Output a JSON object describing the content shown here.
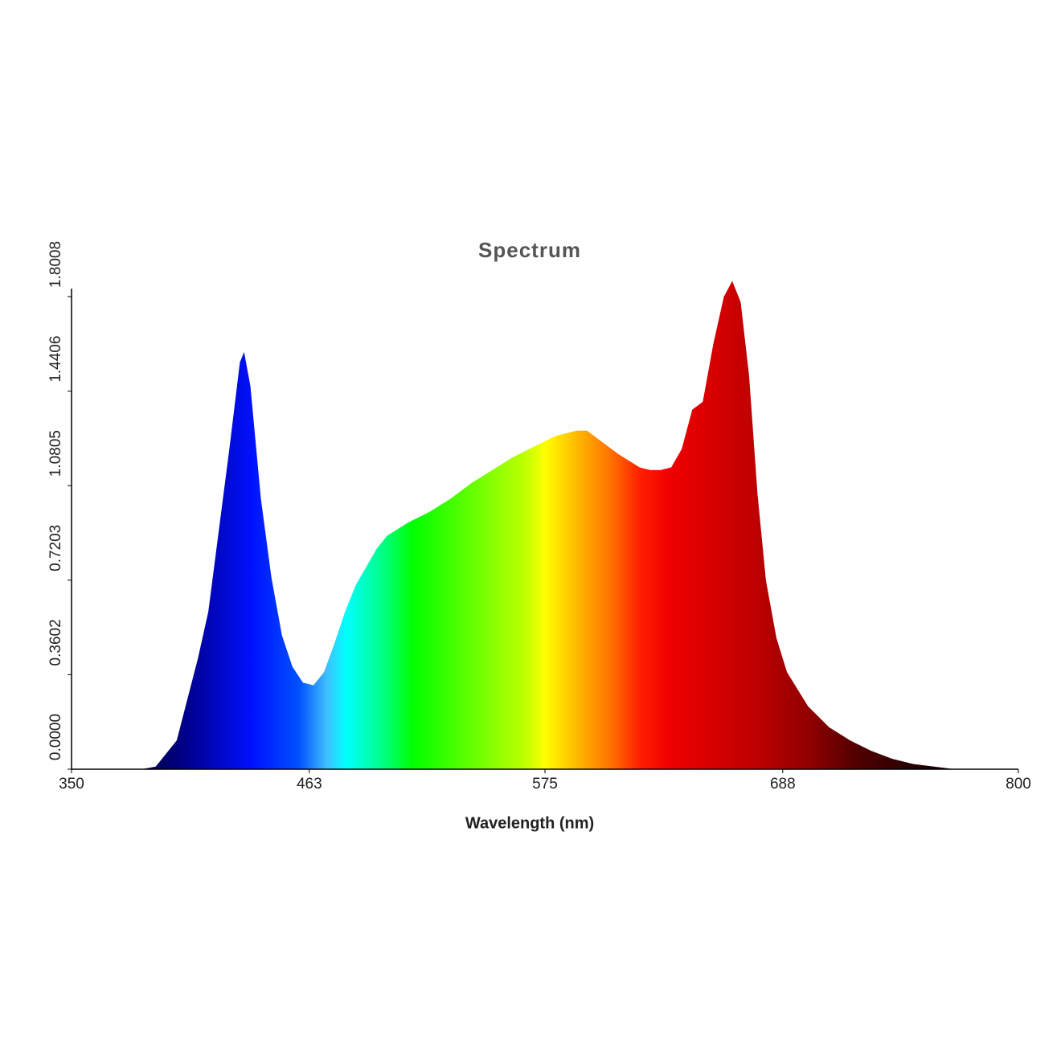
{
  "chart_data": {
    "type": "area",
    "title": "Spectrum",
    "xlabel": "Wavelength (nm)",
    "x": [
      350,
      383,
      390,
      400,
      410,
      415,
      420,
      425,
      430,
      432,
      435,
      440,
      445,
      450,
      455,
      460,
      465,
      470,
      475,
      480,
      485,
      490,
      495,
      500,
      510,
      520,
      530,
      540,
      550,
      560,
      570,
      580,
      590,
      595,
      600,
      610,
      620,
      625,
      630,
      635,
      640,
      645,
      650,
      655,
      660,
      664,
      668,
      672,
      676,
      680,
      685,
      690,
      700,
      710,
      720,
      730,
      740,
      750,
      760,
      770,
      800
    ],
    "y": [
      0,
      0,
      0.01,
      0.11,
      0.42,
      0.6,
      0.91,
      1.22,
      1.55,
      1.59,
      1.46,
      1.03,
      0.73,
      0.51,
      0.39,
      0.33,
      0.32,
      0.37,
      0.48,
      0.6,
      0.7,
      0.77,
      0.84,
      0.89,
      0.94,
      0.98,
      1.03,
      1.09,
      1.14,
      1.19,
      1.23,
      1.27,
      1.29,
      1.29,
      1.26,
      1.2,
      1.15,
      1.14,
      1.14,
      1.15,
      1.22,
      1.37,
      1.4,
      1.62,
      1.8,
      1.86,
      1.78,
      1.5,
      1.05,
      0.72,
      0.5,
      0.37,
      0.24,
      0.16,
      0.11,
      0.07,
      0.04,
      0.02,
      0.01,
      0,
      0
    ],
    "xlim": [
      350,
      800
    ],
    "xticks": [
      350,
      463,
      575,
      688,
      800
    ],
    "ylim": [
      0,
      1.8008
    ],
    "yticks": [
      {
        "value": 0,
        "label": "0.0000"
      },
      0.3602,
      0.7203,
      1.0805,
      1.4406,
      1.8008
    ],
    "grid": false
  }
}
